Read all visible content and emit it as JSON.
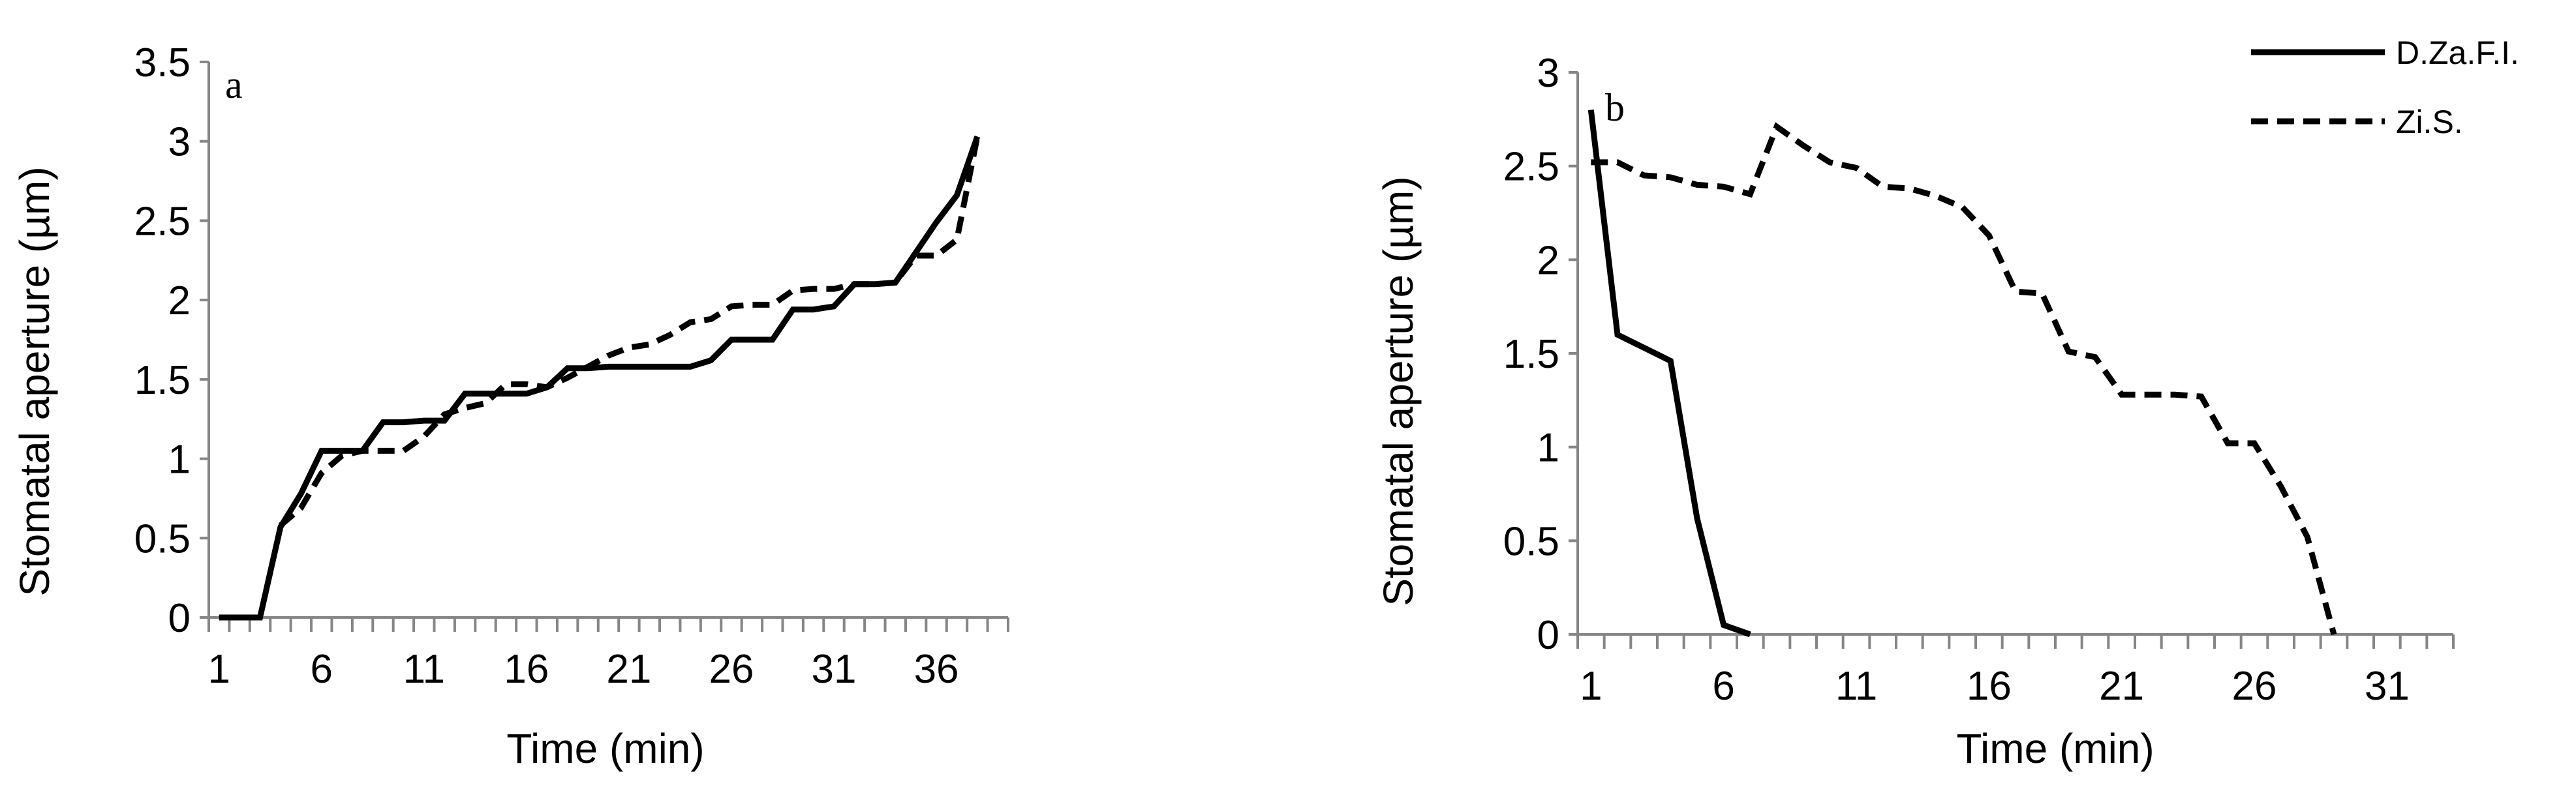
{
  "chart_data": [
    {
      "type": "line",
      "panel_label": "a",
      "xlabel": "Time (min)",
      "ylabel": "Stomatal aperture (µm)",
      "xlim": [
        1,
        39
      ],
      "ylim": [
        0,
        3.5
      ],
      "x_ticks": [
        1,
        6,
        11,
        16,
        21,
        26,
        31,
        36
      ],
      "y_ticks": [
        "0",
        "0.5",
        "1",
        "1.5",
        "2",
        "2.5",
        "3",
        "3.5"
      ],
      "grid": false,
      "series": [
        {
          "style": "solid",
          "points": [
            [
              1,
              0
            ],
            [
              2,
              0
            ],
            [
              3,
              0
            ],
            [
              4,
              0.57
            ],
            [
              5,
              0.78
            ],
            [
              6,
              1.05
            ],
            [
              7,
              1.05
            ],
            [
              8,
              1.05
            ],
            [
              9,
              1.23
            ],
            [
              10,
              1.23
            ],
            [
              11,
              1.24
            ],
            [
              12,
              1.24
            ],
            [
              13,
              1.41
            ],
            [
              14,
              1.41
            ],
            [
              15,
              1.41
            ],
            [
              16,
              1.41
            ],
            [
              17,
              1.45
            ],
            [
              18,
              1.57
            ],
            [
              19,
              1.57
            ],
            [
              20,
              1.58
            ],
            [
              21,
              1.58
            ],
            [
              22,
              1.58
            ],
            [
              23,
              1.58
            ],
            [
              24,
              1.58
            ],
            [
              25,
              1.62
            ],
            [
              26,
              1.75
            ],
            [
              27,
              1.75
            ],
            [
              28,
              1.75
            ],
            [
              29,
              1.94
            ],
            [
              30,
              1.94
            ],
            [
              31,
              1.96
            ],
            [
              32,
              2.1
            ],
            [
              33,
              2.1
            ],
            [
              34,
              2.11
            ],
            [
              35,
              2.3
            ],
            [
              36,
              2.49
            ],
            [
              37,
              2.66
            ],
            [
              38,
              3.03
            ]
          ]
        },
        {
          "style": "dashed",
          "points": [
            [
              4,
              0.58
            ],
            [
              5,
              0.69
            ],
            [
              6,
              0.91
            ],
            [
              7,
              1.02
            ],
            [
              8,
              1.05
            ],
            [
              9,
              1.05
            ],
            [
              10,
              1.05
            ],
            [
              11,
              1.14
            ],
            [
              12,
              1.28
            ],
            [
              13,
              1.32
            ],
            [
              14,
              1.35
            ],
            [
              15,
              1.47
            ],
            [
              16,
              1.47
            ],
            [
              17,
              1.45
            ],
            [
              18,
              1.51
            ],
            [
              19,
              1.58
            ],
            [
              20,
              1.65
            ],
            [
              21,
              1.7
            ],
            [
              22,
              1.72
            ],
            [
              23,
              1.78
            ],
            [
              24,
              1.86
            ],
            [
              25,
              1.88
            ],
            [
              26,
              1.96
            ],
            [
              27,
              1.97
            ],
            [
              28,
              1.97
            ],
            [
              29,
              2.06
            ],
            [
              30,
              2.07
            ],
            [
              31,
              2.07
            ],
            [
              32,
              2.1
            ],
            [
              33,
              2.1
            ],
            [
              34,
              2.11
            ],
            [
              35,
              2.28
            ],
            [
              36,
              2.28
            ],
            [
              37,
              2.38
            ],
            [
              38,
              3.03
            ]
          ]
        }
      ]
    },
    {
      "type": "line",
      "panel_label": "b",
      "xlabel": "Time (min)",
      "ylabel": "Stomatal aperture (µm)",
      "xlim": [
        1,
        33
      ],
      "ylim": [
        0,
        3
      ],
      "x_ticks": [
        1,
        6,
        11,
        16,
        21,
        26,
        31
      ],
      "y_ticks": [
        "0",
        "0.5",
        "1",
        "1.5",
        "2",
        "2.5",
        "3"
      ],
      "grid": false,
      "legend_position": "top-right",
      "series": [
        {
          "name": "D.Za.F.I.",
          "style": "solid",
          "points": [
            [
              1,
              2.8
            ],
            [
              2,
              1.6
            ],
            [
              3,
              1.53
            ],
            [
              4,
              1.46
            ],
            [
              5,
              0.62
            ],
            [
              6,
              0.05
            ],
            [
              7,
              0
            ]
          ]
        },
        {
          "name": "Zi.S.",
          "style": "dashed",
          "points": [
            [
              1,
              2.52
            ],
            [
              2,
              2.52
            ],
            [
              3,
              2.45
            ],
            [
              4,
              2.44
            ],
            [
              5,
              2.4
            ],
            [
              6,
              2.39
            ],
            [
              7,
              2.35
            ],
            [
              8,
              2.71
            ],
            [
              9,
              2.61
            ],
            [
              10,
              2.52
            ],
            [
              11,
              2.49
            ],
            [
              12,
              2.39
            ],
            [
              13,
              2.38
            ],
            [
              14,
              2.34
            ],
            [
              15,
              2.28
            ],
            [
              16,
              2.13
            ],
            [
              17,
              1.83
            ],
            [
              18,
              1.82
            ],
            [
              19,
              1.51
            ],
            [
              20,
              1.48
            ],
            [
              21,
              1.28
            ],
            [
              22,
              1.28
            ],
            [
              23,
              1.28
            ],
            [
              24,
              1.27
            ],
            [
              25,
              1.02
            ],
            [
              26,
              1.02
            ],
            [
              27,
              0.79
            ],
            [
              28,
              0.52
            ],
            [
              29,
              0
            ]
          ]
        }
      ]
    }
  ]
}
